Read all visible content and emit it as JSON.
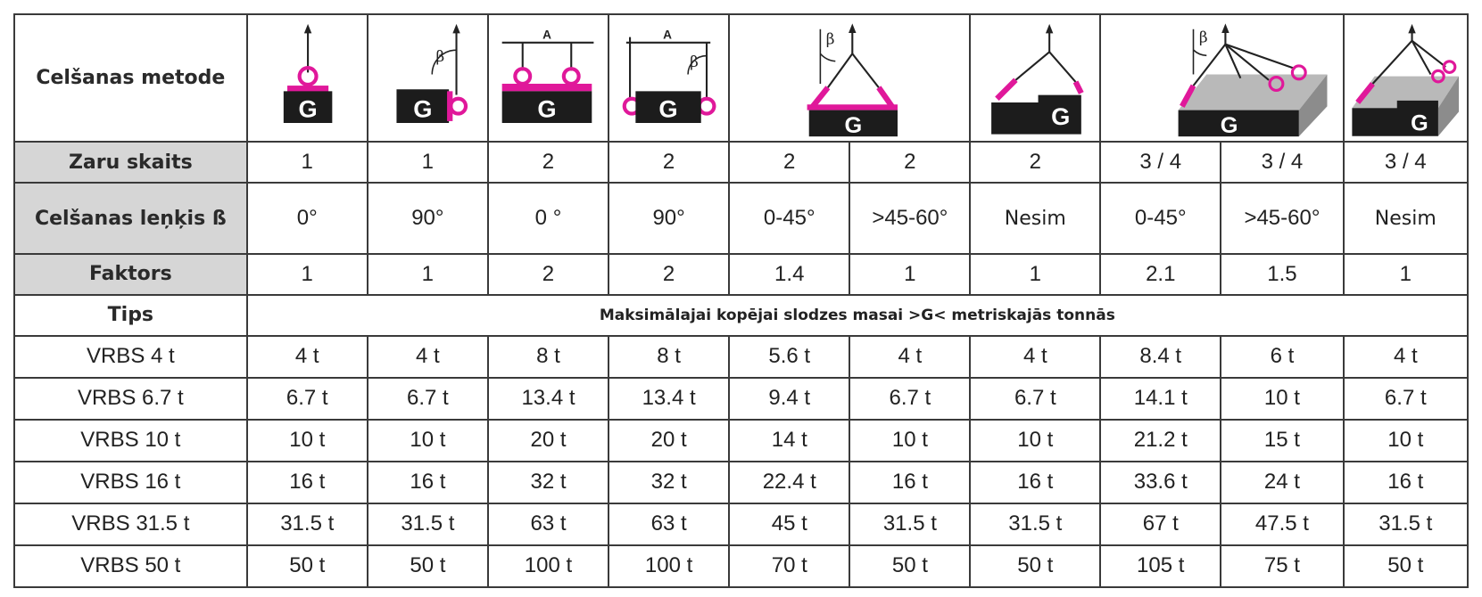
{
  "labels": {
    "method": "Celšanas metode",
    "legs": "Zaru skaits",
    "angle": "Celšanas leņķis ß",
    "factor": "Faktors",
    "type": "Tips",
    "note": "Maksimālajai kopējai slodzes masai >G< metriskajās tonnās"
  },
  "icons": {
    "g_letter": "G",
    "beta": "β",
    "a_letter": "A",
    "accent": "#e0189a",
    "block": "#1c1c1c",
    "grey_block": "#b9b9b9"
  },
  "legs": [
    "1",
    "1",
    "2",
    "2",
    "2",
    "2",
    "2",
    "3 / 4",
    "3 / 4",
    "3 / 4"
  ],
  "angles": [
    "0°",
    "90°",
    "0 °",
    "90°",
    "0-45°",
    ">45-60°",
    "Nesim",
    "0-45°",
    ">45-60°",
    "Nesim"
  ],
  "factors": [
    "1",
    "1",
    "2",
    "2",
    "1.4",
    "1",
    "1",
    "2.1",
    "1.5",
    "1"
  ],
  "rows": [
    {
      "name": "VRBS 4 t",
      "values": [
        "4 t",
        "4 t",
        "8 t",
        "8 t",
        "5.6 t",
        "4 t",
        "4 t",
        "8.4 t",
        "6 t",
        "4 t"
      ]
    },
    {
      "name": "VRBS 6.7 t",
      "values": [
        "6.7 t",
        "6.7 t",
        "13.4 t",
        "13.4 t",
        "9.4 t",
        "6.7 t",
        "6.7 t",
        "14.1 t",
        "10 t",
        "6.7 t"
      ]
    },
    {
      "name": "VRBS 10 t",
      "values": [
        "10 t",
        "10 t",
        "20 t",
        "20 t",
        "14 t",
        "10 t",
        "10 t",
        "21.2 t",
        "15 t",
        "10 t"
      ]
    },
    {
      "name": "VRBS 16 t",
      "values": [
        "16 t",
        "16 t",
        "32 t",
        "32 t",
        "22.4 t",
        "16 t",
        "16 t",
        "33.6 t",
        "24 t",
        "16 t"
      ]
    },
    {
      "name": "VRBS 31.5 t",
      "values": [
        "31.5 t",
        "31.5 t",
        "63 t",
        "63 t",
        "45 t",
        "31.5 t",
        "31.5 t",
        "67 t",
        "47.5 t",
        "31.5 t"
      ]
    },
    {
      "name": "VRBS 50 t",
      "values": [
        "50 t",
        "50 t",
        "100 t",
        "100 t",
        "70 t",
        "50 t",
        "50 t",
        "105 t",
        "75 t",
        "50 t"
      ]
    }
  ]
}
